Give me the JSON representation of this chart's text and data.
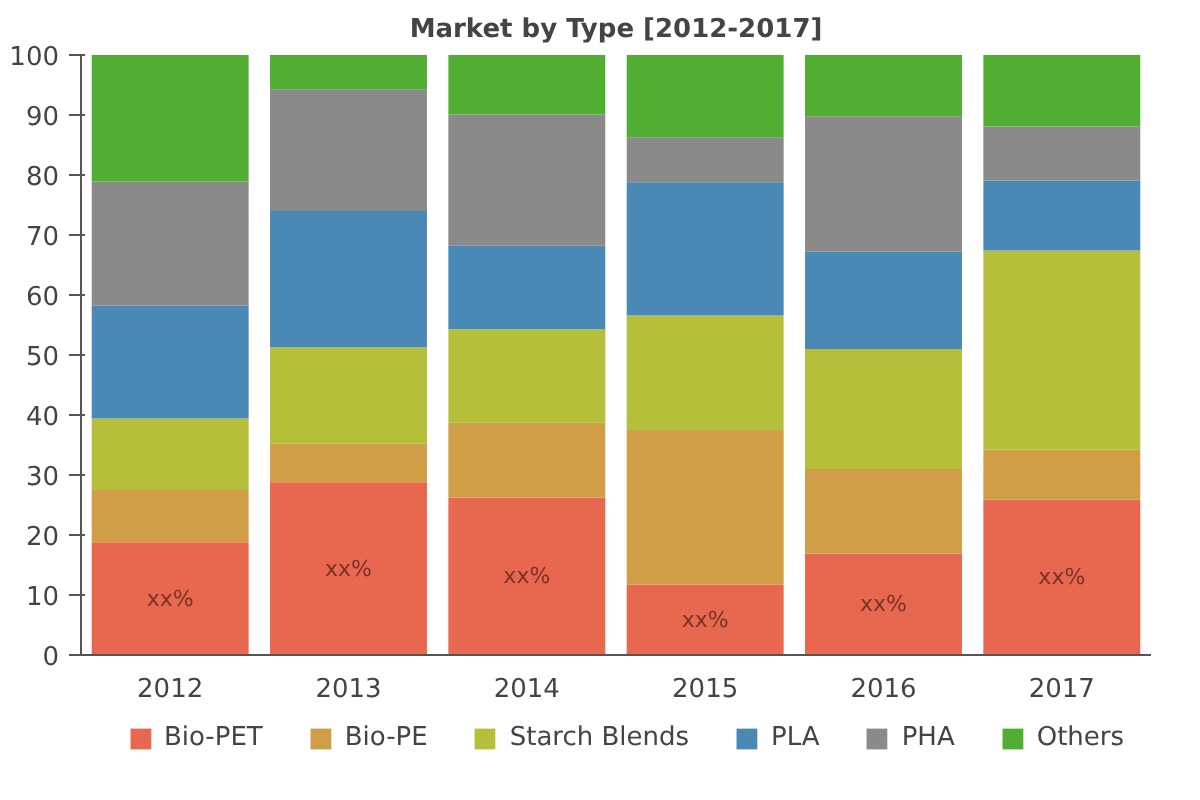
{
  "chart_data": {
    "type": "bar",
    "title": "Market by Type [2012-2017]",
    "stacked": true,
    "categories": [
      "2012",
      "2013",
      "2014",
      "2015",
      "2016",
      "2017"
    ],
    "series": [
      {
        "name": "Bio-PET",
        "color": "#e8684f",
        "values": [
          18.8,
          28.8,
          26.2,
          11.7,
          16.9,
          25.9
        ]
      },
      {
        "name": "Bio-PE",
        "color": "#d09e47",
        "values": [
          8.7,
          6.4,
          12.5,
          25.8,
          14.1,
          8.3
        ]
      },
      {
        "name": "Starch Blends",
        "color": "#b5bf3a",
        "values": [
          11.9,
          16.1,
          15.6,
          19.1,
          20.0,
          33.2
        ]
      },
      {
        "name": "PLA",
        "color": "#4a89b5",
        "values": [
          18.8,
          22.7,
          13.9,
          22.2,
          16.2,
          11.7
        ]
      },
      {
        "name": "PHA",
        "color": "#8a8a8a",
        "values": [
          20.7,
          20.3,
          21.9,
          7.5,
          22.6,
          9.0
        ]
      },
      {
        "name": "Others",
        "color": "#52ae32",
        "values": [
          21.1,
          5.7,
          9.9,
          13.7,
          10.2,
          11.9
        ]
      }
    ],
    "ylim": [
      0,
      100
    ],
    "yticks": [
      0,
      10,
      20,
      30,
      40,
      50,
      60,
      70,
      80,
      90,
      100
    ],
    "grid": false,
    "legend": "bottom",
    "annotations": [
      "xx%",
      "xx%",
      "xx%",
      "xx%",
      "xx%",
      "xx%"
    ]
  }
}
